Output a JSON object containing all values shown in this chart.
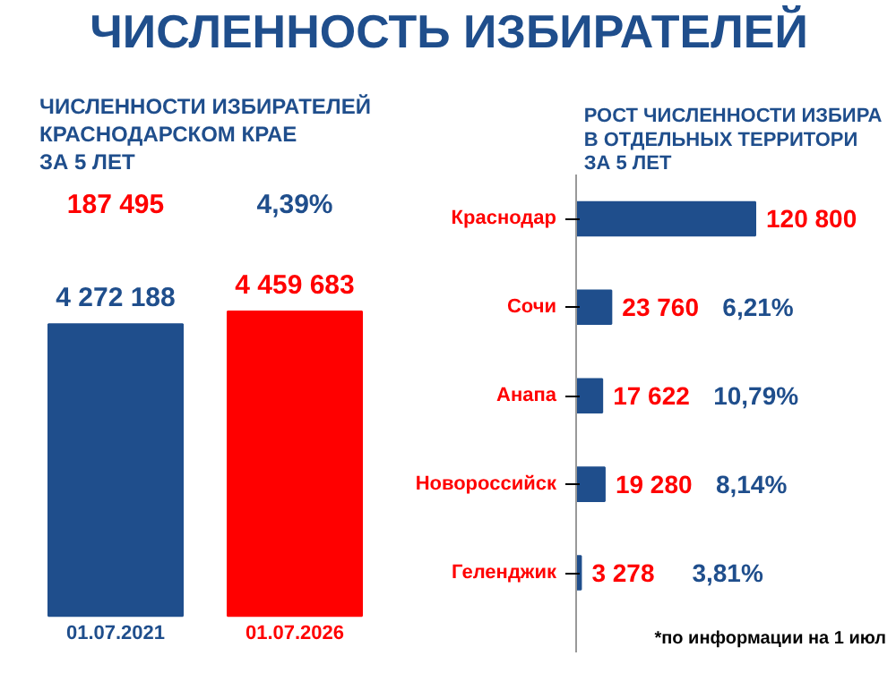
{
  "chart_data": [
    {
      "type": "other",
      "title": "ЧИСЛЕННОСТЬ ИЗБИРАТЕЛЕЙ"
    },
    {
      "type": "bar",
      "title": "ЧИСЛЕННОСТИ ИЗБИРАТЕЛЕЙ\nКРАСНОДАРСКОМ КРАЕ\nЗА 5 ЛЕТ",
      "categories": [
        "01.07.2021",
        "01.07.2026"
      ],
      "values": [
        4272188,
        4459683
      ],
      "colors": [
        "#1f4e8c",
        "#ff0000"
      ],
      "value_labels": [
        "4 272 188",
        "4 459 683"
      ],
      "annotations": [
        "187 495",
        "4,39%"
      ]
    },
    {
      "type": "bar",
      "orientation": "horizontal",
      "title": "РОСТ ЧИСЛЕННОСТИ ИЗБИРА\nВ ОТДЕЛЬНЫХ ТЕРРИТОРИ\nЗА 5 ЛЕТ",
      "categories": [
        "Краснодар",
        "Сочи",
        "Анапа",
        "Новороссийск",
        "Геленджик"
      ],
      "values": [
        120800,
        23760,
        17622,
        19280,
        3278
      ],
      "color": "#1f4e8c",
      "value_labels": [
        "120 800",
        "23 760",
        "17 622",
        "19 280",
        "3 278"
      ],
      "annotations": [
        "*по информации на 1 июл",
        "6,21%",
        "10,79%",
        "8,14%",
        "3,81%"
      ]
    }
  ]
}
